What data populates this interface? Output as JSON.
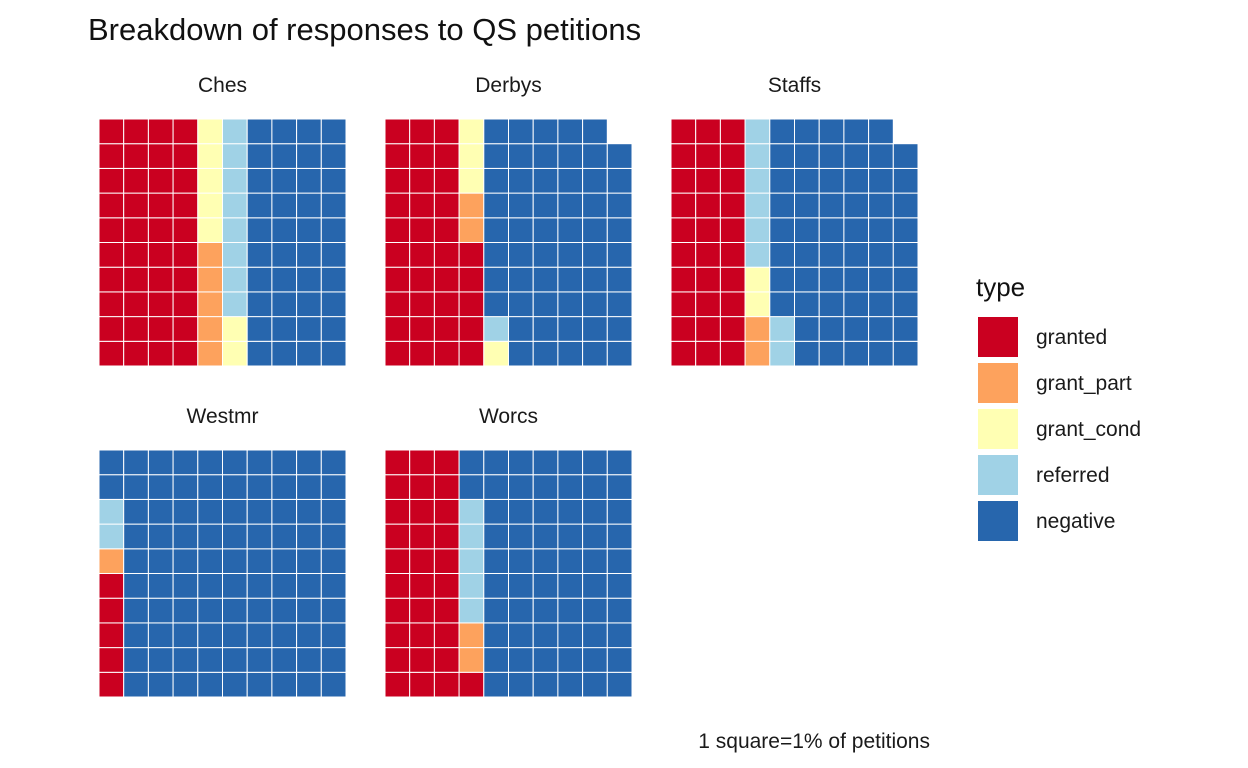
{
  "chart_data": {
    "type": "waffle",
    "title": "Breakdown of responses to QS petitions",
    "caption": "1 square=1% of petitions",
    "legend": {
      "title": "type",
      "position": "right",
      "items": [
        {
          "key": "granted",
          "label": "granted",
          "color": "#CA0020"
        },
        {
          "key": "grant_part",
          "label": "grant_part",
          "color": "#FDA25D"
        },
        {
          "key": "grant_cond",
          "label": "grant_cond",
          "color": "#FFFFB3"
        },
        {
          "key": "referred",
          "label": "referred",
          "color": "#A0D2E6"
        },
        {
          "key": "negative",
          "label": "negative",
          "color": "#2766AD"
        }
      ]
    },
    "grid": {
      "rows": 10,
      "cols": 10
    },
    "categories": [
      "granted",
      "grant_part",
      "grant_cond",
      "referred",
      "negative"
    ],
    "panels": [
      {
        "name": "Ches",
        "values": {
          "granted": 40,
          "grant_part": 5,
          "grant_cond": 7,
          "referred": 8,
          "negative": 40
        }
      },
      {
        "name": "Derbys",
        "values": {
          "granted": 35,
          "grant_part": 2,
          "grant_cond": 4,
          "referred": 1,
          "negative": 57
        }
      },
      {
        "name": "Staffs",
        "values": {
          "granted": 30,
          "grant_part": 2,
          "grant_cond": 2,
          "referred": 8,
          "negative": 57
        }
      },
      {
        "name": "Westmr",
        "values": {
          "granted": 5,
          "grant_part": 1,
          "grant_cond": 0,
          "referred": 2,
          "negative": 92
        }
      },
      {
        "name": "Worcs",
        "values": {
          "granted": 31,
          "grant_part": 2,
          "grant_cond": 0,
          "referred": 5,
          "negative": 62
        }
      }
    ]
  }
}
